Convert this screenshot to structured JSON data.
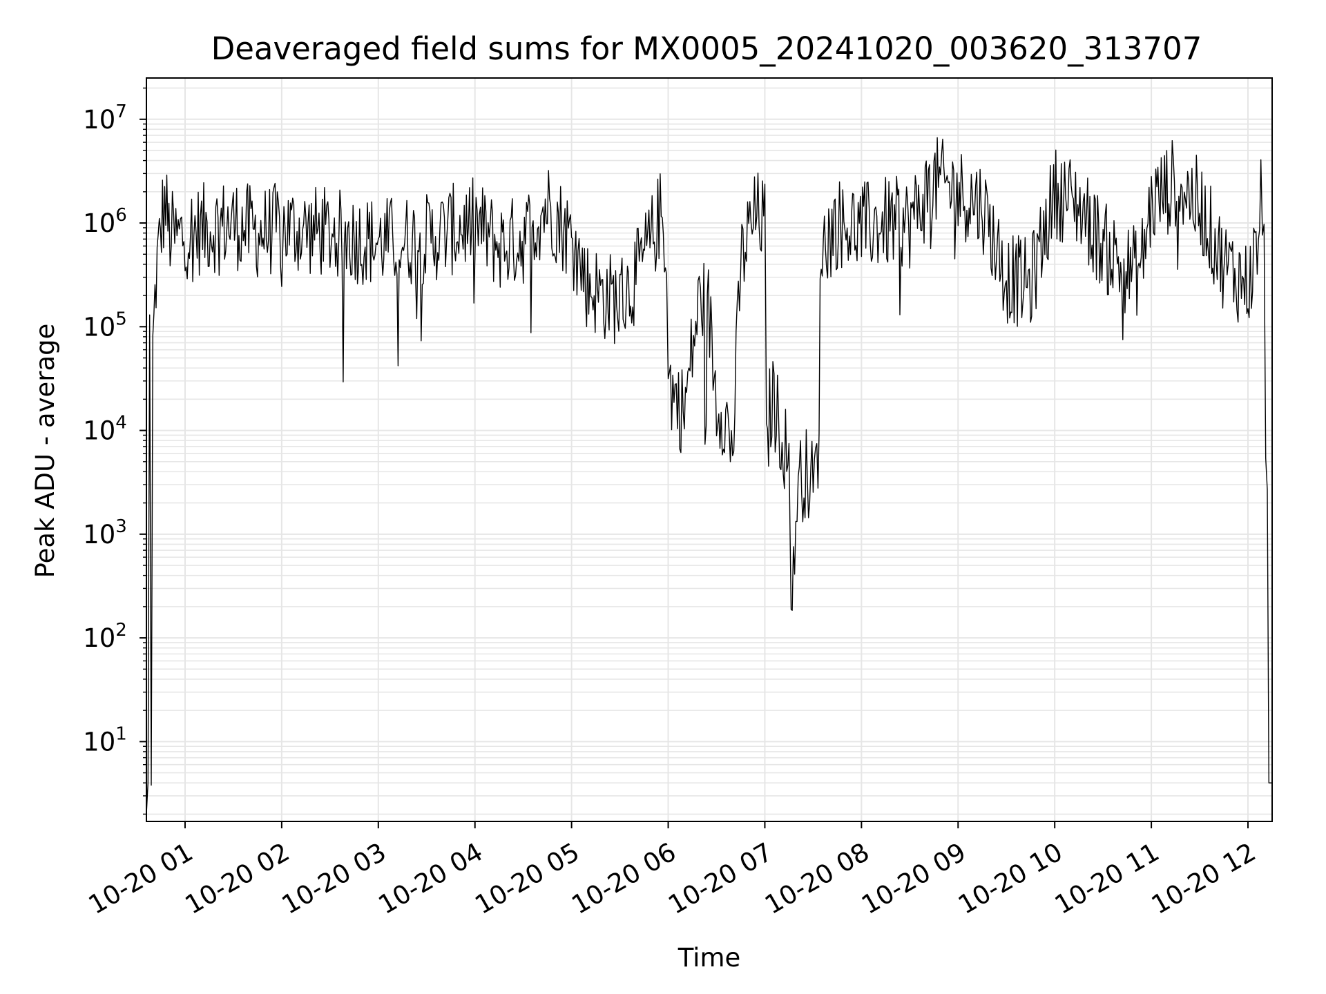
{
  "chart_data": {
    "type": "line",
    "title": "Deaveraged field sums for MX0005_20241020_003620_313707",
    "xlabel": "Time",
    "ylabel": "Peak ADU - average",
    "yscale": "log",
    "ylim": [
      1.7,
      25000000
    ],
    "xlim": [
      "10-20 00:36",
      "10-20 12:15"
    ],
    "grid": true,
    "line_color": "#000000",
    "grid_color": "#e6e6e6",
    "x_ticks": [
      {
        "value": "10-20 01:00",
        "label": "10-20 01"
      },
      {
        "value": "10-20 02:00",
        "label": "10-20 02"
      },
      {
        "value": "10-20 03:00",
        "label": "10-20 03"
      },
      {
        "value": "10-20 04:00",
        "label": "10-20 04"
      },
      {
        "value": "10-20 05:00",
        "label": "10-20 05"
      },
      {
        "value": "10-20 06:00",
        "label": "10-20 06"
      },
      {
        "value": "10-20 07:00",
        "label": "10-20 07"
      },
      {
        "value": "10-20 08:00",
        "label": "10-20 08"
      },
      {
        "value": "10-20 09:00",
        "label": "10-20 09"
      },
      {
        "value": "10-20 10:00",
        "label": "10-20 10"
      },
      {
        "value": "10-20 11:00",
        "label": "10-20 11"
      },
      {
        "value": "10-20 12:00",
        "label": "10-20 12"
      }
    ],
    "y_ticks": [
      {
        "value": 10,
        "base": "10",
        "exp": "1"
      },
      {
        "value": 100,
        "base": "10",
        "exp": "2"
      },
      {
        "value": 1000,
        "base": "10",
        "exp": "3"
      },
      {
        "value": 10000,
        "base": "10",
        "exp": "4"
      },
      {
        "value": 100000,
        "base": "10",
        "exp": "5"
      },
      {
        "value": 1000000,
        "base": "10",
        "exp": "6"
      },
      {
        "value": 10000000,
        "base": "10",
        "exp": "7"
      }
    ],
    "series": [
      {
        "x": [
          "10-20 00:36",
          "10-20 00:37",
          "10-20 00:38",
          "10-20 00:39",
          "10-20 00:40",
          "10-20 00:42",
          "10-20 00:44",
          "10-20 00:46",
          "10-20 00:48",
          "10-20 00:50",
          "10-20 00:55",
          "10-20 01:00",
          "10-20 01:15",
          "10-20 01:30",
          "10-20 01:45",
          "10-20 02:00",
          "10-20 02:30",
          "10-20 03:00",
          "10-20 03:30",
          "10-20 03:50",
          "10-20 04:00",
          "10-20 04:15",
          "10-20 04:30",
          "10-20 04:45",
          "10-20 05:00",
          "10-20 05:10",
          "10-20 05:20",
          "10-20 05:30",
          "10-20 05:40",
          "10-20 05:50",
          "10-20 05:55",
          "10-20 05:59",
          "10-20 06:00",
          "10-20 06:05",
          "10-20 06:10",
          "10-20 06:15",
          "10-20 06:20",
          "10-20 06:25",
          "10-20 06:30",
          "10-20 06:35",
          "10-20 06:40",
          "10-20 06:45",
          "10-20 06:50",
          "10-20 06:55",
          "10-20 07:00",
          "10-20 07:01",
          "10-20 07:03",
          "10-20 07:05",
          "10-20 07:10",
          "10-20 07:15",
          "10-20 07:17",
          "10-20 07:20",
          "10-20 07:25",
          "10-20 07:30",
          "10-20 07:33",
          "10-20 07:35",
          "10-20 07:45",
          "10-20 08:00",
          "10-20 08:15",
          "10-20 08:30",
          "10-20 08:45",
          "10-20 09:00",
          "10-20 09:15",
          "10-20 09:30",
          "10-20 09:45",
          "10-20 10:00",
          "10-20 10:15",
          "10-20 10:30",
          "10-20 10:45",
          "10-20 10:53",
          "10-20 11:00",
          "10-20 11:15",
          "10-20 11:30",
          "10-20 11:45",
          "10-20 12:00",
          "10-20 12:05",
          "10-20 12:08",
          "10-20 12:09",
          "10-20 12:10",
          "10-20 12:11",
          "10-20 12:12",
          "10-20 12:13",
          "10-20 12:14",
          "10-20 12:15"
        ],
        "y": [
          2,
          4,
          130000,
          3.8,
          60000,
          300000,
          600000,
          1200000,
          1500000,
          800000,
          700000,
          800000,
          900000,
          1000000,
          800000,
          900000,
          800000,
          650000,
          700000,
          900000,
          1000000,
          600000,
          700000,
          1500000,
          700000,
          250000,
          200000,
          180000,
          300000,
          700000,
          1200000,
          600000,
          30000,
          20000,
          15000,
          60000,
          200000,
          150000,
          20000,
          15000,
          6000,
          400000,
          800000,
          1200000,
          1000000,
          5000,
          15000,
          20000,
          10000,
          5000,
          150,
          3000,
          4000,
          3000,
          5000,
          600000,
          1000000,
          900000,
          1000000,
          1000000,
          2500000,
          2000000,
          1500000,
          300000,
          250000,
          2000000,
          1500000,
          600000,
          350000,
          350000,
          1500000,
          2500000,
          1500000,
          400000,
          250000,
          500000,
          1500000,
          800000,
          600000,
          12000,
          2700,
          4,
          4,
          4
        ]
      }
    ]
  }
}
